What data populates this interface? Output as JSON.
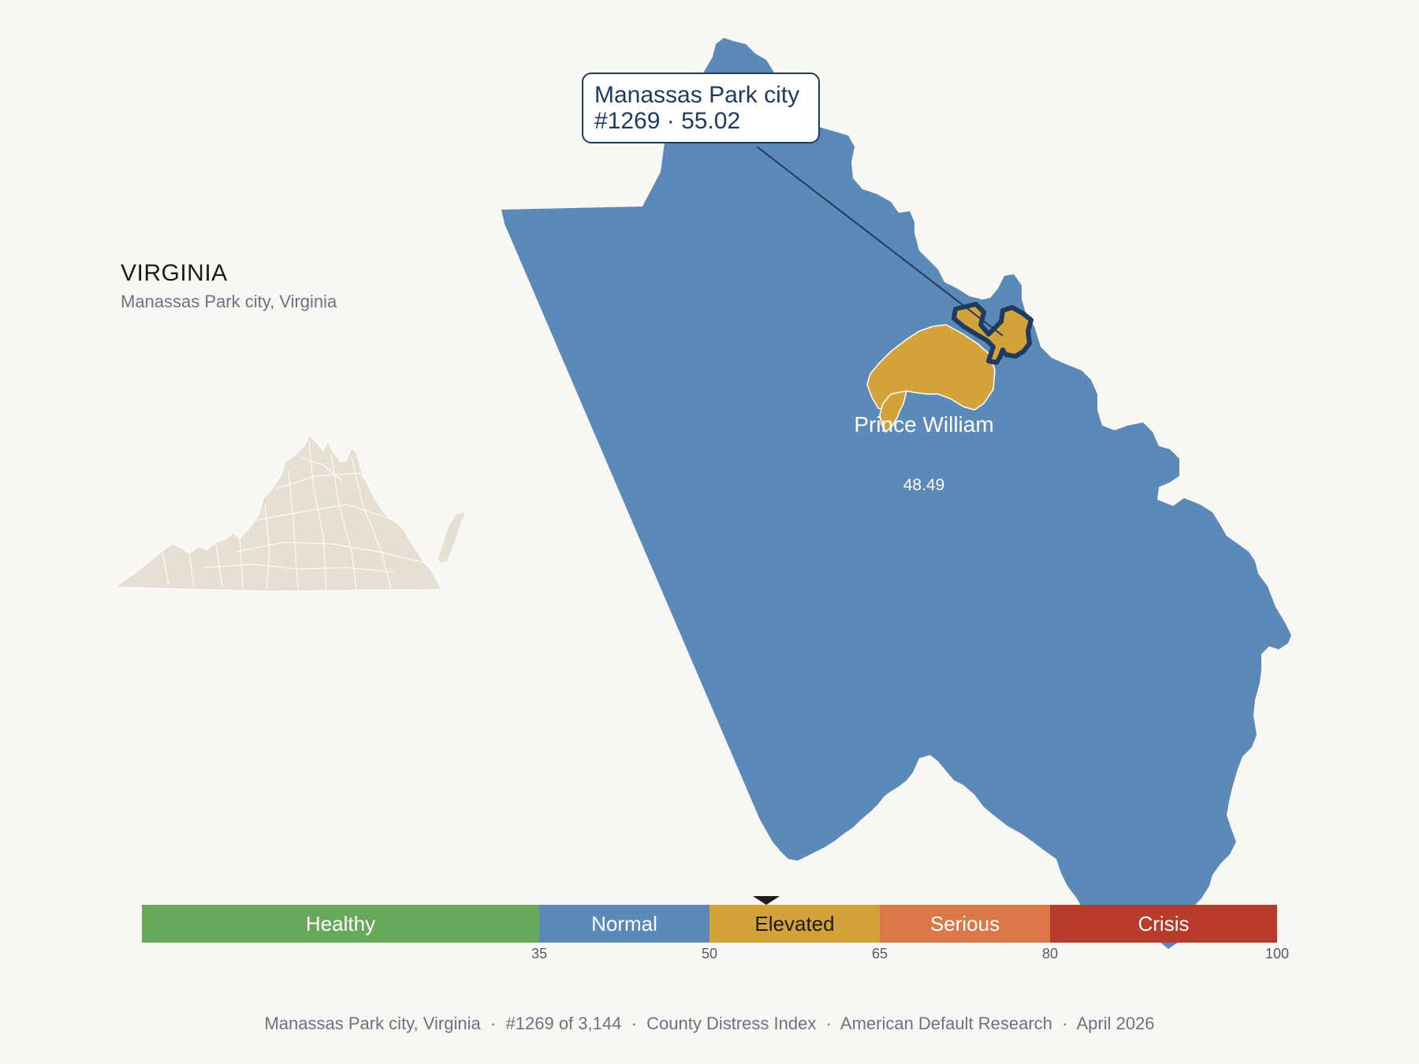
{
  "state": {
    "title": "VIRGINIA",
    "subtitle": "Manassas Park city, Virginia"
  },
  "map": {
    "county_name": "Prince William",
    "county_score": "48.49",
    "county_color": "#5b8ab8",
    "city_color": "#d4a23a",
    "outline_color": "#1f3a5f",
    "locator_color": "#e6e0d4"
  },
  "callout": {
    "name": "Manassas Park city",
    "rank_score": "#1269 · 55.02"
  },
  "scale": {
    "segments": [
      {
        "label": "Healthy",
        "color": "#67a85a",
        "text_color": "#ffffff",
        "from": 0,
        "to": 35
      },
      {
        "label": "Normal",
        "color": "#5b8ab8",
        "text_color": "#ffffff",
        "from": 35,
        "to": 50
      },
      {
        "label": "Elevated",
        "color": "#d4a23a",
        "text_color": "#1c1c1c",
        "from": 50,
        "to": 65
      },
      {
        "label": "Serious",
        "color": "#dc7748",
        "text_color": "#ffffff",
        "from": 65,
        "to": 80
      },
      {
        "label": "Crisis",
        "color": "#b83b2c",
        "text_color": "#ffffff",
        "from": 80,
        "to": 100
      }
    ],
    "ticks": [
      "35",
      "50",
      "65",
      "80",
      "100"
    ],
    "marker_value": 55.02
  },
  "footer": {
    "place": "Manassas Park city, Virginia",
    "rank": "#1269 of 3,144",
    "index": "County Distress Index",
    "source": "American Default Research",
    "date": "April 2026",
    "separator": "  ·  "
  }
}
